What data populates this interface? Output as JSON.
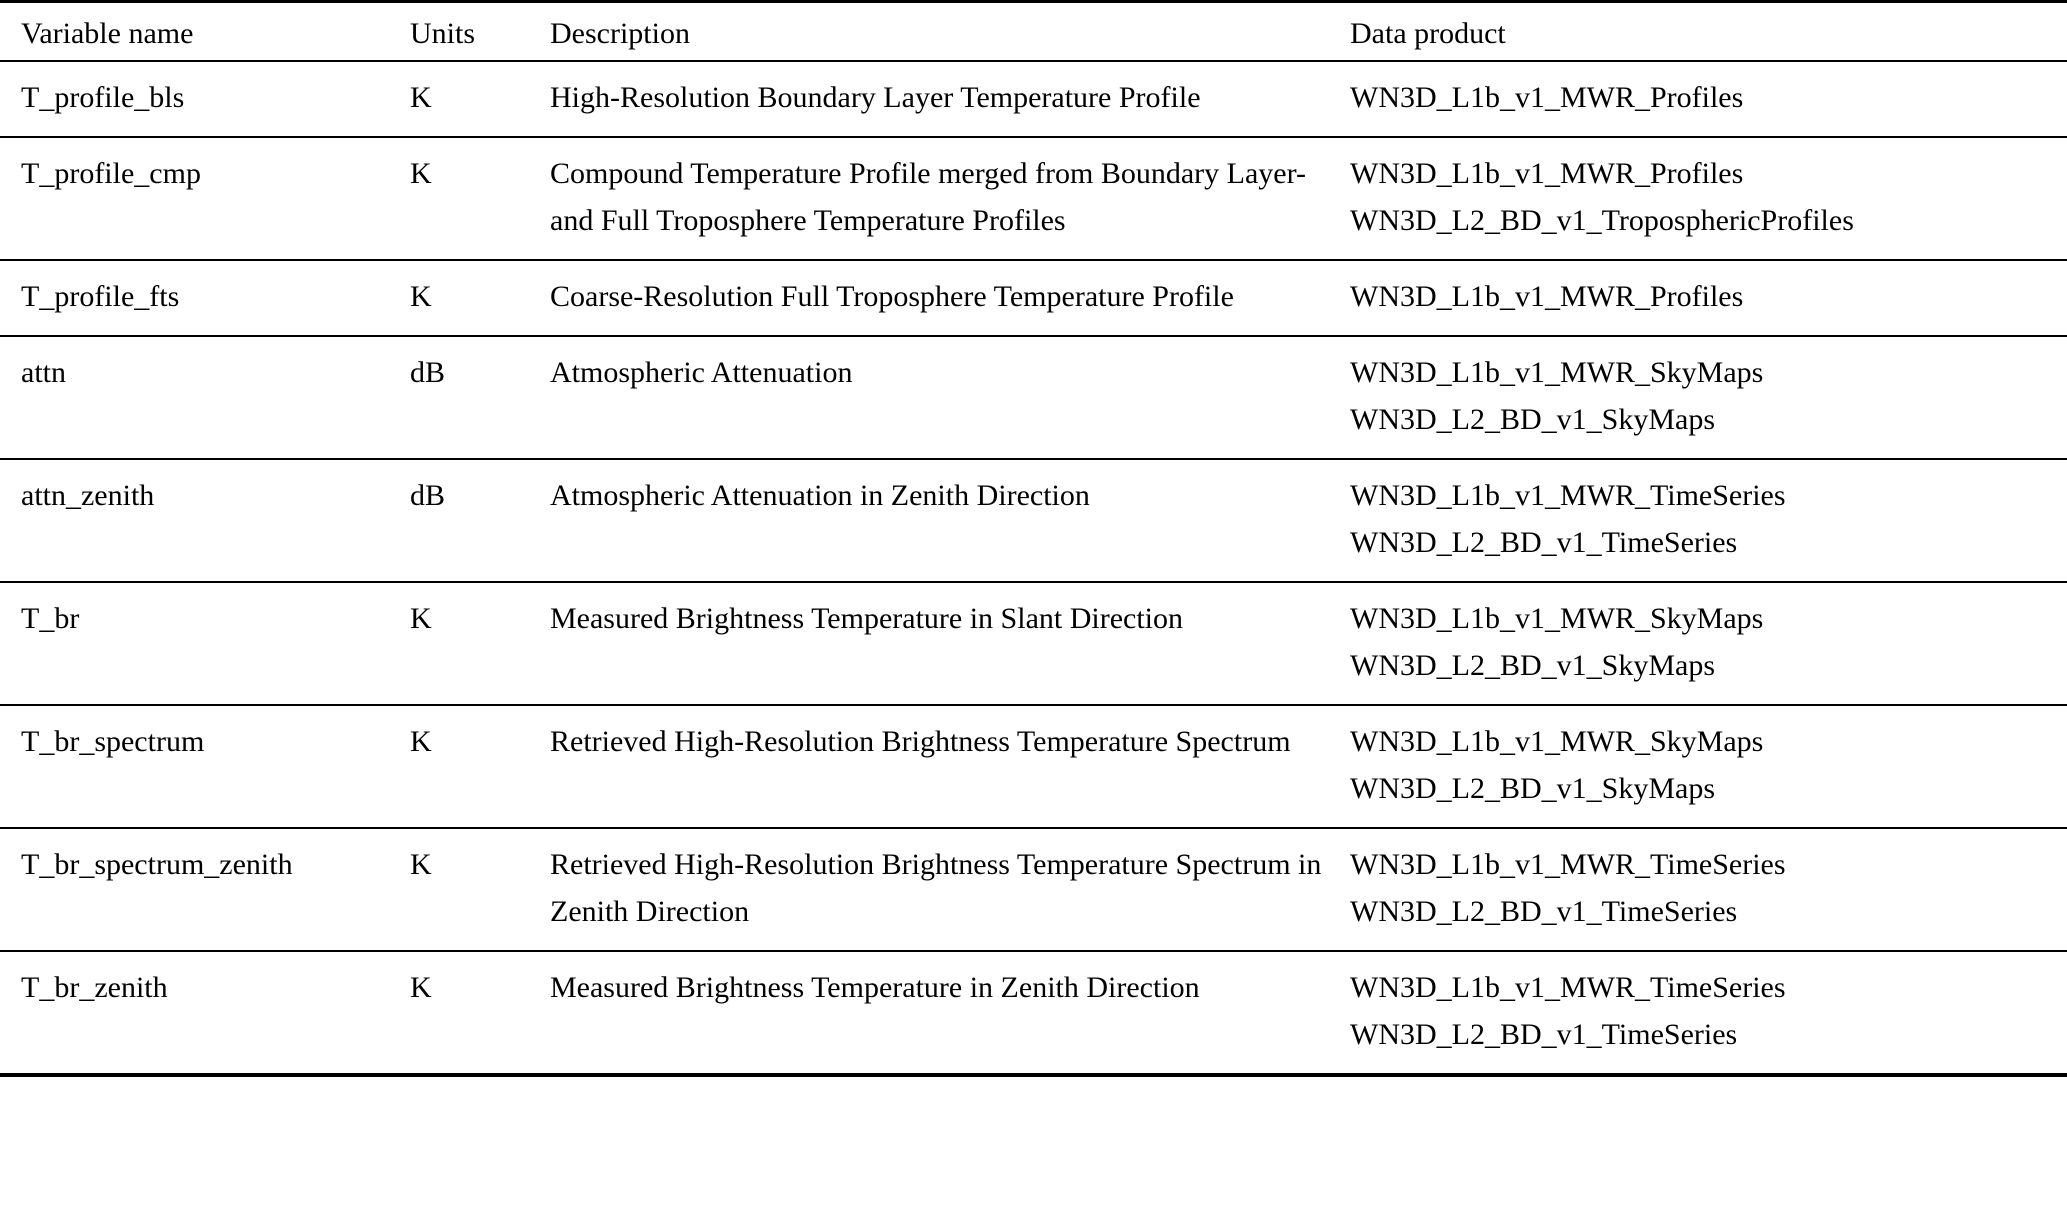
{
  "table": {
    "headers": {
      "variable": "Variable name",
      "units": "Units",
      "description": "Description",
      "data_product": "Data product"
    },
    "rows": [
      {
        "variable": "T_profile_bls",
        "units": "K",
        "description": "High-Resolution Boundary Layer Temperature Profile",
        "products": "WN3D_L1b_v1_MWR_Profiles"
      },
      {
        "variable": "T_profile_cmp",
        "units": "K",
        "description": "Compound Temperature Profile merged from Boundary Layer- and Full Troposphere Temperature Profiles",
        "products": "WN3D_L1b_v1_MWR_Profiles\nWN3D_L2_BD_v1_TroposphericProfiles"
      },
      {
        "variable": "T_profile_fts",
        "units": "K",
        "description": "Coarse-Resolution Full Troposphere Temperature Profile",
        "products": "WN3D_L1b_v1_MWR_Profiles"
      },
      {
        "variable": "attn",
        "units": "dB",
        "description": "Atmospheric Attenuation",
        "products": "WN3D_L1b_v1_MWR_SkyMaps\nWN3D_L2_BD_v1_SkyMaps"
      },
      {
        "variable": "attn_zenith",
        "units": "dB",
        "description": "Atmospheric Attenuation in Zenith Direction",
        "products": "WN3D_L1b_v1_MWR_TimeSeries\nWN3D_L2_BD_v1_TimeSeries"
      },
      {
        "variable": "T_br",
        "units": "K",
        "description": "Measured Brightness Temperature in Slant Direction",
        "products": "WN3D_L1b_v1_MWR_SkyMaps\nWN3D_L2_BD_v1_SkyMaps"
      },
      {
        "variable": "T_br_spectrum",
        "units": "K",
        "description": "Retrieved High-Resolution Brightness Temperature Spectrum",
        "products": "WN3D_L1b_v1_MWR_SkyMaps\nWN3D_L2_BD_v1_SkyMaps"
      },
      {
        "variable": "T_br_spectrum_zenith",
        "units": "K",
        "description": "Retrieved High-Resolution Brightness Temperature Spectrum in Zenith Direction",
        "products": "WN3D_L1b_v1_MWR_TimeSeries\nWN3D_L2_BD_v1_TimeSeries"
      },
      {
        "variable": "T_br_zenith",
        "units": "K",
        "description": "Measured Brightness Temperature in Zenith Direction",
        "products": "WN3D_L1b_v1_MWR_TimeSeries\nWN3D_L2_BD_v1_TimeSeries"
      }
    ]
  }
}
